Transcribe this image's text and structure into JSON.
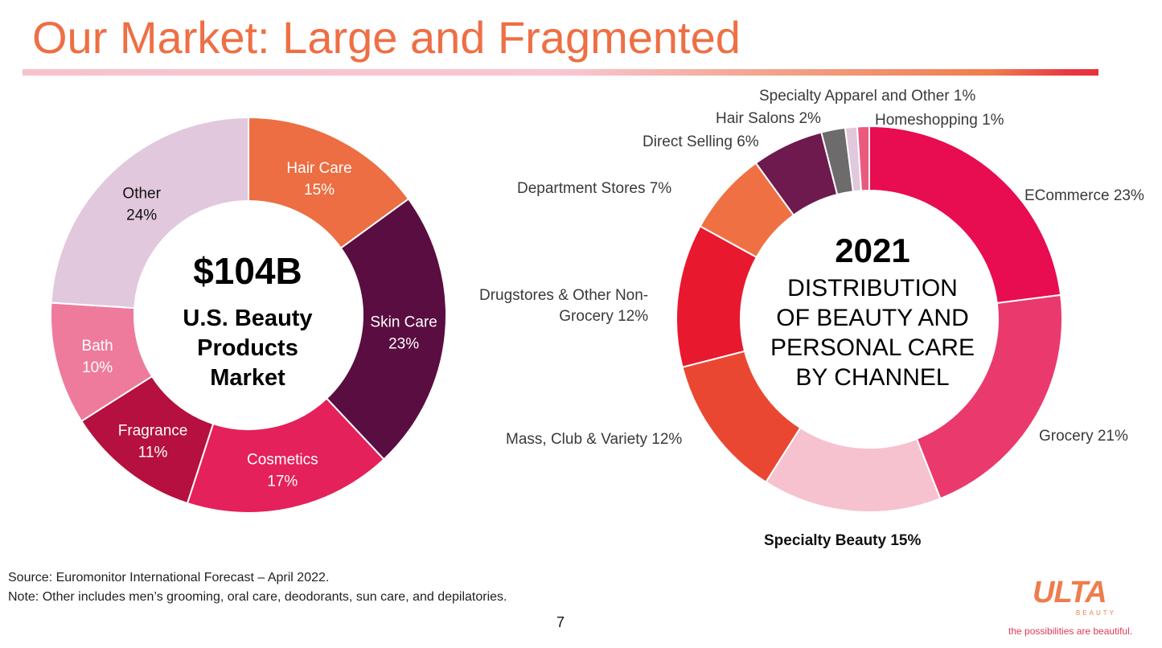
{
  "title": "Our Market: Large and Fragmented",
  "chart_data": [
    {
      "type": "pie",
      "variant": "donut",
      "center_value": "$104B",
      "center_label": "U.S. Beauty Products Market",
      "center_lines": [
        "U.S. Beauty",
        "Products",
        "Market"
      ],
      "slices": [
        {
          "label": "Hair Care",
          "value": 15,
          "pct_text": "15%",
          "color": "#ec6e42"
        },
        {
          "label": "Skin Care",
          "value": 23,
          "pct_text": "23%",
          "color": "#5a0d40"
        },
        {
          "label": "Cosmetics",
          "value": 17,
          "pct_text": "17%",
          "color": "#e4215a"
        },
        {
          "label": "Fragrance",
          "value": 11,
          "pct_text": "11%",
          "color": "#b5103f"
        },
        {
          "label": "Bath",
          "value": 10,
          "pct_text": "10%",
          "color": "#ee7b9c"
        },
        {
          "label": "Other",
          "value": 24,
          "pct_text": "24%",
          "color": "#e1c8dd"
        }
      ]
    },
    {
      "type": "pie",
      "variant": "donut",
      "center_value": "2021",
      "center_label": "DISTRIBUTION OF BEAUTY AND PERSONAL CARE BY CHANNEL",
      "center_lines": [
        "DISTRIBUTION",
        "OF BEAUTY AND",
        "PERSONAL CARE",
        "BY CHANNEL"
      ],
      "slices": [
        {
          "label": "ECommerce 23%",
          "value": 23,
          "color": "#e80c50"
        },
        {
          "label": "Grocery 21%",
          "value": 21,
          "color": "#ea3a6d"
        },
        {
          "label": "Specialty Beauty 15%",
          "value": 15,
          "color": "#f6c2d0"
        },
        {
          "label": "Mass, Club & Variety  12%",
          "value": 12,
          "color": "#ea4733"
        },
        {
          "label": "Drugstores & Other Non-Grocery 12%",
          "label_lines": [
            "Drugstores & Other Non-",
            "Grocery 12%"
          ],
          "value": 12,
          "color": "#e8182f"
        },
        {
          "label": "Department Stores 7%",
          "value": 7,
          "color": "#ef7143"
        },
        {
          "label": "Direct Selling 6%",
          "value": 6,
          "color": "#6e1a4e"
        },
        {
          "label": "Hair Salons 2%",
          "value": 2,
          "color": "#6e6b6c"
        },
        {
          "label": "Specialty Apparel and Other 1%",
          "value": 1,
          "color": "#e2c8dc"
        },
        {
          "label": "Homeshopping 1%",
          "value": 1,
          "color": "#ea5a7e"
        }
      ]
    }
  ],
  "footnotes": {
    "source": "Source:  Euromonitor International Forecast – April 2022.",
    "note": "Note: Other includes men’s grooming, oral care, deodorants, sun care, and depilatories."
  },
  "page_number": "7",
  "logo": {
    "name": "ULTA",
    "sub": "BEAUTY",
    "tagline": "the possibilities are beautiful."
  }
}
